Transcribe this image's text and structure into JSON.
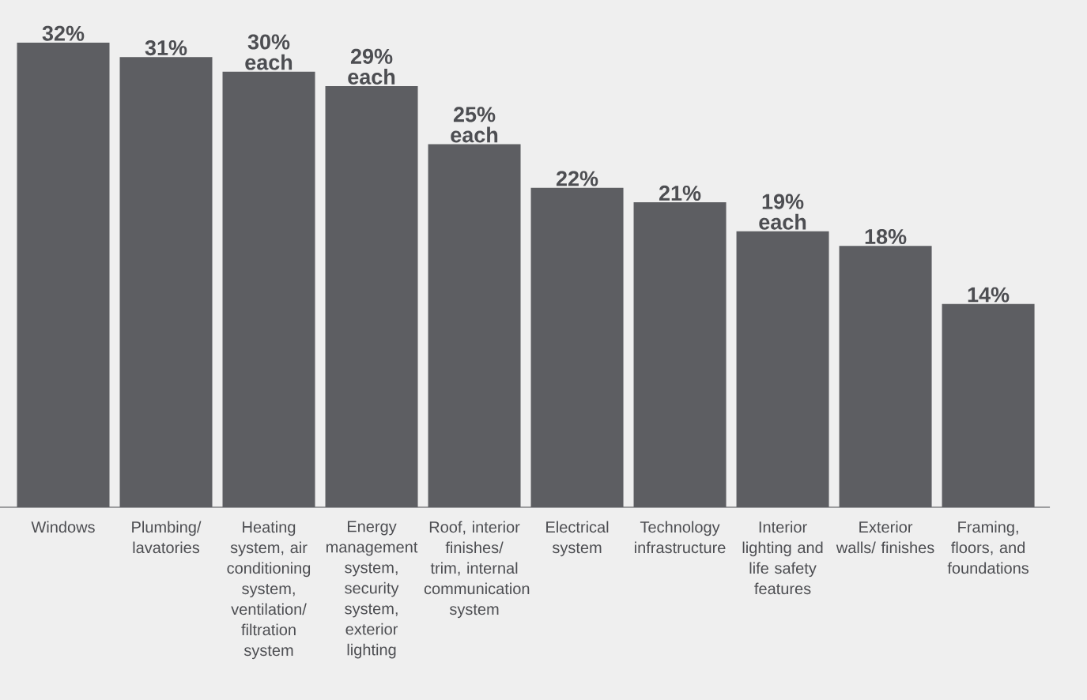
{
  "chart_data": {
    "type": "bar",
    "categories": [
      "Windows",
      "Plumbing/ lavatories",
      "Heating system, air conditioning system, ventilation/ filtration system",
      "Energy management system, security system, exterior lighting",
      "Roof, interior finishes/ trim, internal communication system",
      "Electrical system",
      "Technology infrastructure",
      "Interior lighting and life safety features",
      "Exterior walls/ finishes",
      "Framing, floors, and foundations"
    ],
    "values": [
      32,
      31,
      30,
      29,
      25,
      22,
      21,
      19,
      18,
      14
    ],
    "value_labels": [
      "32%",
      "31%",
      "30% each",
      "29% each",
      "25% each",
      "22%",
      "21%",
      "19% each",
      "18%",
      "14%"
    ],
    "color": "#5d5e62"
  }
}
